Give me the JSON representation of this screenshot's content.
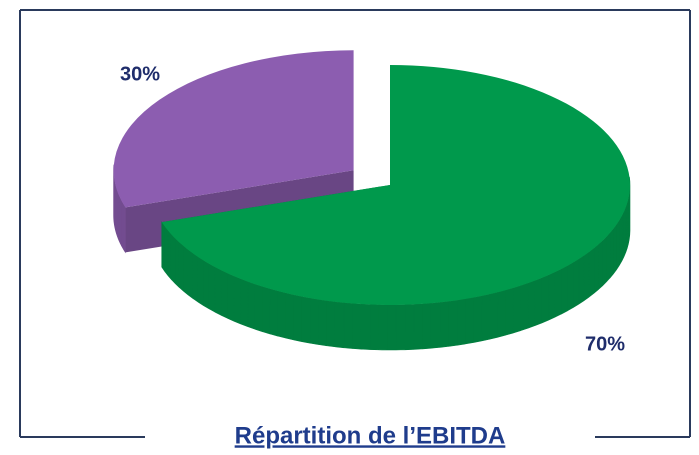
{
  "chart_data": {
    "type": "pie",
    "title": "Répartition de l’EBITDA",
    "values": [
      70,
      30
    ],
    "value_labels": [
      "70%",
      "30%"
    ],
    "colors": [
      "#00994c",
      "#8c5db0"
    ]
  }
}
